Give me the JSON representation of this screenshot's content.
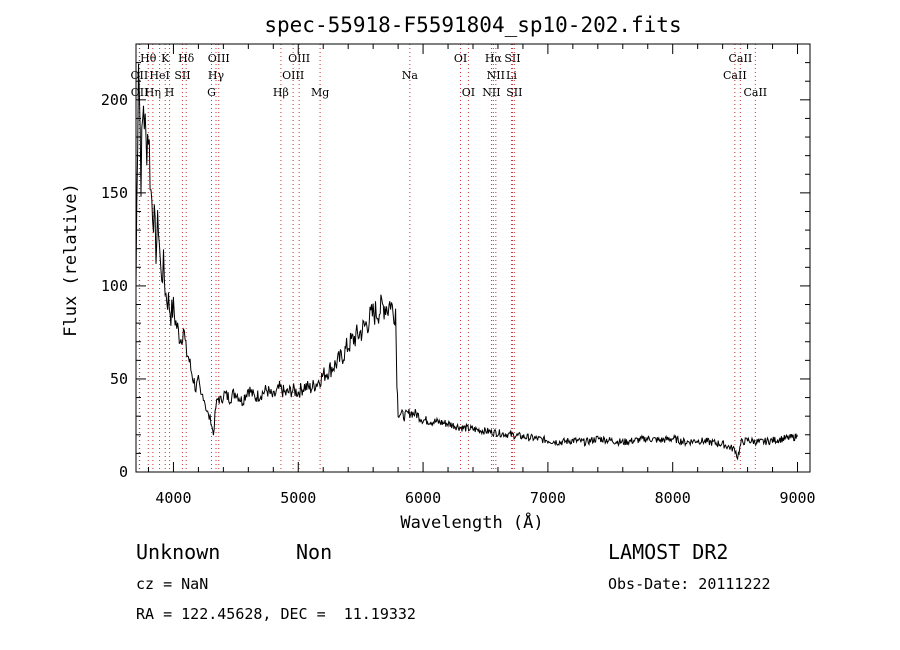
{
  "chart_data": {
    "type": "line",
    "title": "spec-55918-F5591804_sp10-202.fits",
    "xlabel": "Wavelength (Å)",
    "ylabel": "Flux (relative)",
    "xlim": [
      3700,
      9100
    ],
    "ylim": [
      0,
      230
    ],
    "x_ticks": [
      4000,
      5000,
      6000,
      7000,
      8000,
      9000
    ],
    "y_ticks": [
      0,
      50,
      100,
      150,
      200
    ],
    "grid": false,
    "series": [
      {
        "x": [
          3700,
          3720,
          3740,
          3760,
          3780,
          3800,
          3820,
          3840,
          3860,
          3880,
          3900,
          3920,
          3940,
          3960,
          3980,
          4000,
          4020,
          4040,
          4060,
          4080,
          4100,
          4120,
          4140,
          4160,
          4180,
          4200,
          4220,
          4240,
          4260,
          4280,
          4300,
          4320,
          4340,
          4360,
          4380,
          4400,
          4450,
          4500,
          4550,
          4600,
          4650,
          4700,
          4750,
          4800,
          4850,
          4900,
          4950,
          5000,
          5050,
          5100,
          5150,
          5200,
          5250,
          5300,
          5350,
          5400,
          5450,
          5500,
          5550,
          5600,
          5650,
          5700,
          5720,
          5740,
          5760,
          5780,
          5790,
          5800,
          5850,
          5900,
          5950,
          6000,
          6100,
          6200,
          6300,
          6400,
          6500,
          6600,
          6700,
          6800,
          6900,
          7000,
          7100,
          7200,
          7300,
          7400,
          7500,
          7600,
          7700,
          7800,
          7900,
          8000,
          8100,
          8200,
          8300,
          8400,
          8500,
          8520,
          8550,
          8600,
          8700,
          8800,
          8900,
          9000
        ],
        "y": [
          100,
          230,
          160,
          200,
          175,
          185,
          150,
          140,
          120,
          135,
          105,
          110,
          95,
          92,
          85,
          88,
          80,
          75,
          72,
          78,
          65,
          62,
          55,
          50,
          45,
          48,
          40,
          42,
          35,
          30,
          28,
          20,
          35,
          40,
          38,
          42,
          40,
          43,
          38,
          45,
          40,
          42,
          44,
          40,
          45,
          42,
          44,
          43,
          46,
          45,
          48,
          52,
          55,
          58,
          62,
          68,
          72,
          75,
          80,
          85,
          87,
          90,
          88,
          92,
          85,
          88,
          50,
          32,
          30,
          32,
          31,
          28,
          27,
          26,
          24,
          23,
          22,
          21,
          20,
          19,
          18,
          17,
          16,
          17,
          16,
          18,
          17,
          16,
          17,
          18,
          17,
          18,
          16,
          17,
          16,
          15,
          12,
          8,
          16,
          17,
          16,
          17,
          18,
          19
        ]
      }
    ],
    "lines": [
      {
        "label": "OII",
        "wave": 3727,
        "row": 1
      },
      {
        "label": "OII",
        "wave": 3729,
        "row": 2
      },
      {
        "label": "Hθ",
        "wave": 3798,
        "row": 0
      },
      {
        "label": "Hη",
        "wave": 3835,
        "row": 2
      },
      {
        "label": "K",
        "wave": 3934,
        "row": 0
      },
      {
        "label": "HeI",
        "wave": 3889,
        "row": 1
      },
      {
        "label": "H",
        "wave": 3969,
        "row": 2
      },
      {
        "label": "SII",
        "wave": 4072,
        "row": 1
      },
      {
        "label": "Hδ",
        "wave": 4102,
        "row": 0
      },
      {
        "label": "OIII",
        "wave": 4363,
        "row": 0
      },
      {
        "label": "Hγ",
        "wave": 4341,
        "row": 1
      },
      {
        "label": "G",
        "wave": 4305,
        "row": 2
      },
      {
        "label": "Hβ",
        "wave": 4861,
        "row": 2
      },
      {
        "label": "OIII",
        "wave": 5007,
        "row": 0
      },
      {
        "label": "OIII",
        "wave": 4959,
        "row": 1
      },
      {
        "label": "Mg",
        "wave": 5175,
        "row": 2
      },
      {
        "label": "Na",
        "wave": 5894,
        "row": 1
      },
      {
        "label": "OI",
        "wave": 6300,
        "row": 0
      },
      {
        "label": "OI",
        "wave": 6363,
        "row": 2
      },
      {
        "label": "Hα",
        "wave": 6563,
        "row": 0
      },
      {
        "label": "SII",
        "wave": 6716,
        "row": 0
      },
      {
        "label": "NII",
        "wave": 6583,
        "row": 1
      },
      {
        "label": "Li",
        "wave": 6708,
        "row": 1
      },
      {
        "label": "NII",
        "wave": 6548,
        "row": 2
      },
      {
        "label": "SII",
        "wave": 6731,
        "row": 2
      },
      {
        "label": "CaII",
        "wave": 8542,
        "row": 0
      },
      {
        "label": "CaII",
        "wave": 8498,
        "row": 1
      },
      {
        "label": "CaII",
        "wave": 8662,
        "row": 2
      }
    ]
  },
  "info": {
    "class": "Unknown",
    "subclass": "Non",
    "survey": "LAMOST DR2",
    "cz": "cz = NaN",
    "obs_date": "Obs-Date: 20111222",
    "coords": "RA = 122.45628, DEC =  11.19332"
  },
  "colors": {
    "axes": "#000000",
    "spectrum": "#000000",
    "line_marker": "#cc3333"
  }
}
